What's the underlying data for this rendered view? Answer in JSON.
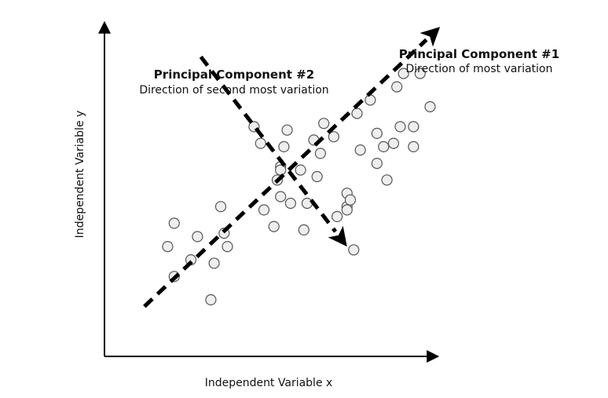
{
  "diagram": {
    "x_axis_label": "Independent Variable x",
    "y_axis_label": "Independent Variable y",
    "components": [
      {
        "title": "Principal Component #1",
        "subtitle": "Direction of most variation"
      },
      {
        "title": "Principal Component #2",
        "subtitle": "Direction of second most variation"
      }
    ]
  },
  "chart_data": {
    "type": "scatter",
    "title": "",
    "xlabel": "Independent Variable x",
    "ylabel": "Independent Variable y",
    "xlim": [
      0,
      100
    ],
    "ylim": [
      0,
      100
    ],
    "grid": false,
    "points": [
      [
        21,
        40
      ],
      [
        19,
        33
      ],
      [
        28,
        36
      ],
      [
        26,
        29
      ],
      [
        21,
        24
      ],
      [
        35,
        45
      ],
      [
        36,
        37
      ],
      [
        37,
        33
      ],
      [
        33,
        28
      ],
      [
        32,
        17
      ],
      [
        45,
        69
      ],
      [
        47,
        64
      ],
      [
        52,
        53
      ],
      [
        53,
        57
      ],
      [
        53,
        48
      ],
      [
        51,
        39
      ],
      [
        55,
        68
      ],
      [
        59,
        56
      ],
      [
        61,
        46
      ],
      [
        60,
        38
      ],
      [
        53,
        56
      ],
      [
        63,
        65
      ],
      [
        66,
        70
      ],
      [
        69,
        66
      ],
      [
        65,
        61
      ],
      [
        64,
        54
      ],
      [
        73,
        49
      ],
      [
        73,
        45
      ],
      [
        74,
        47
      ],
      [
        73,
        44
      ],
      [
        70,
        42
      ],
      [
        76,
        73
      ],
      [
        77,
        62
      ],
      [
        75,
        32
      ],
      [
        80,
        77
      ],
      [
        82,
        67
      ],
      [
        84,
        63
      ],
      [
        82,
        58
      ],
      [
        85,
        53
      ],
      [
        89,
        69
      ],
      [
        87,
        64
      ],
      [
        88,
        81
      ],
      [
        90,
        85
      ],
      [
        98,
        75
      ],
      [
        93,
        69
      ],
      [
        93,
        63
      ],
      [
        95,
        85
      ],
      [
        48,
        44
      ],
      [
        56,
        46
      ],
      [
        54,
        63
      ]
    ],
    "pc1_line": [
      [
        12,
        15
      ],
      [
        101,
        99
      ]
    ],
    "pc2_line": [
      [
        29,
        90
      ],
      [
        73,
        33
      ]
    ],
    "point_color": "#eeeeee",
    "point_stroke": "#555555",
    "line_color": "#000000"
  }
}
